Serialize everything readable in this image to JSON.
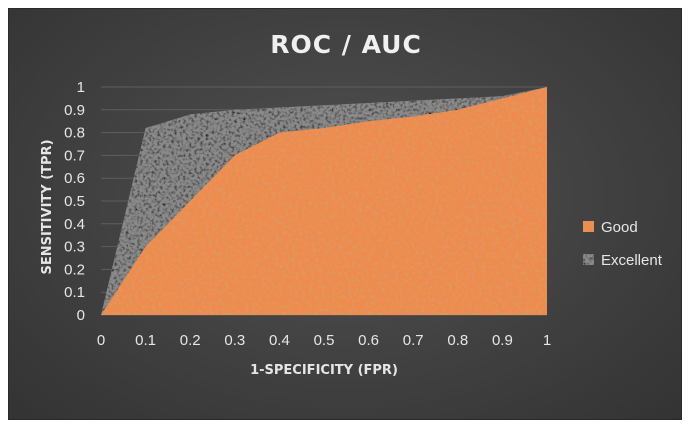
{
  "chart_data": {
    "type": "area",
    "title": "ROC / AUC",
    "xlabel": "1-SPECIFICITY (FPR)",
    "ylabel": "SENSITIVITY (TPR)",
    "xlim": [
      0,
      1
    ],
    "ylim": [
      0,
      1
    ],
    "x_ticks": [
      "0",
      "0.1",
      "0.2",
      "0.3",
      "0.4",
      "0.5",
      "0.6",
      "0.7",
      "0.8",
      "0.9",
      "1"
    ],
    "y_ticks": [
      "0",
      "0.1",
      "0.2",
      "0.3",
      "0.4",
      "0.5",
      "0.6",
      "0.7",
      "0.8",
      "0.9",
      "1"
    ],
    "grid": true,
    "legend_position": "right",
    "series": [
      {
        "name": "Excellent",
        "color": "#8a8a8a",
        "points": [
          [
            0,
            0
          ],
          [
            0.1,
            0.82
          ],
          [
            0.2,
            0.88
          ],
          [
            0.3,
            0.9
          ],
          [
            0.4,
            0.91
          ],
          [
            0.5,
            0.92
          ],
          [
            0.6,
            0.93
          ],
          [
            0.7,
            0.94
          ],
          [
            0.8,
            0.95
          ],
          [
            0.9,
            0.96
          ],
          [
            1,
            1
          ]
        ]
      },
      {
        "name": "Good",
        "color": "#ee8c50",
        "points": [
          [
            0,
            0
          ],
          [
            0.1,
            0.3
          ],
          [
            0.2,
            0.5
          ],
          [
            0.3,
            0.7
          ],
          [
            0.4,
            0.8
          ],
          [
            0.5,
            0.82
          ],
          [
            0.6,
            0.85
          ],
          [
            0.7,
            0.87
          ],
          [
            0.8,
            0.9
          ],
          [
            0.9,
            0.95
          ],
          [
            1,
            1
          ]
        ]
      }
    ]
  }
}
